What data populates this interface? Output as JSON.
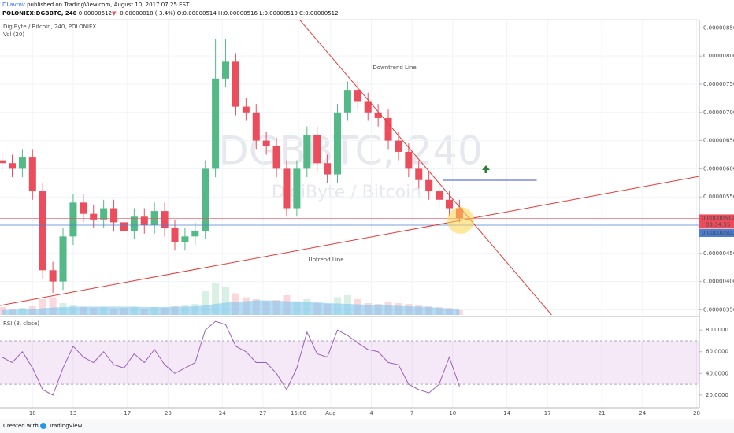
{
  "header": {
    "author": "DLavrov",
    "published": "published on TradingView.com, August 10, 2017 07:25 EST",
    "symbol": "POLONIEX:DGBBTC, 240",
    "last": "0.00000512",
    "arrow": "▼",
    "change": "-0.00000018 (-3.4%)",
    "ohlc": "O:0.00000514 H:0.00000516 L:0.00000510 C:0.00000512"
  },
  "footer": {
    "created": "Created with",
    "brand": "TradingView"
  },
  "chart_data": {
    "type": "candlestick",
    "title": "DigiByte / Bitcoin, 240, POLONIEX",
    "watermark": "DGBBTC, 240",
    "watermark_sub": "DigiByte / Bitcoin",
    "up_color": "#53b987",
    "down_color": "#eb4d5c",
    "x": [
      7.75,
      8.5,
      9.25,
      10,
      10.75,
      11.5,
      12.25,
      13,
      13.75,
      14.5,
      15.25,
      16,
      16.75,
      17.5,
      18.25,
      19,
      19.75,
      20.5,
      21.25,
      22,
      22.75,
      23.5,
      24.25,
      25,
      25.75,
      26.5,
      27.25,
      28,
      28.75,
      29.5,
      30.25,
      31,
      31.75,
      32.5,
      33.25,
      34,
      34.75,
      35.5,
      36.25,
      37,
      37.75,
      38.5,
      39.25,
      40,
      40.75,
      41.5
    ],
    "open": [
      6.15e-06,
      6.1e-06,
      6e-06,
      6.2e-06,
      5.6e-06,
      4.2e-06,
      4e-06,
      4.8e-06,
      5.4e-06,
      5.2e-06,
      5.1e-06,
      5.3e-06,
      5.05e-06,
      4.9e-06,
      5.15e-06,
      5e-06,
      5.25e-06,
      4.95e-06,
      4.7e-06,
      4.8e-06,
      4.9e-06,
      6e-06,
      7.6e-06,
      7.9e-06,
      7.1e-06,
      7e-06,
      6.5e-06,
      6.4e-06,
      6e-06,
      5.3e-06,
      6e-06,
      6.6e-06,
      6.1e-06,
      5.9e-06,
      7e-06,
      7.4e-06,
      7.2e-06,
      7e-06,
      6.9e-06,
      6.5e-06,
      6.3e-06,
      6e-06,
      5.8e-06,
      5.6e-06,
      5.45e-06,
      5.3e-06
    ],
    "high": [
      6.3e-06,
      6.25e-06,
      6.35e-06,
      6.35e-06,
      5.75e-06,
      4.35e-06,
      4.95e-06,
      5.55e-06,
      5.55e-06,
      5.35e-06,
      5.45e-06,
      5.45e-06,
      5.2e-06,
      5.3e-06,
      5.3e-06,
      5.4e-06,
      5.4e-06,
      5.1e-06,
      4.95e-06,
      5.05e-06,
      6.15e-06,
      8.3e-06,
      8.3e-06,
      8.05e-06,
      7.25e-06,
      7.15e-06,
      6.65e-06,
      6.55e-06,
      6.15e-06,
      6.15e-06,
      6.75e-06,
      6.75e-06,
      6.25e-06,
      7.15e-06,
      7.55e-06,
      7.55e-06,
      7.35e-06,
      7.15e-06,
      7.05e-06,
      6.65e-06,
      6.45e-06,
      6.15e-06,
      5.95e-06,
      5.75e-06,
      5.6e-06,
      5.45e-06
    ],
    "low": [
      5.95e-06,
      5.85e-06,
      5.85e-06,
      5.45e-06,
      4.05e-06,
      3.8e-06,
      3.85e-06,
      4.65e-06,
      5.05e-06,
      4.95e-06,
      4.95e-06,
      4.9e-06,
      4.75e-06,
      4.75e-06,
      4.85e-06,
      4.85e-06,
      4.8e-06,
      4.55e-06,
      4.55e-06,
      4.65e-06,
      4.75e-06,
      5.85e-06,
      7.45e-06,
      6.95e-06,
      6.85e-06,
      6.35e-06,
      6.25e-06,
      5.85e-06,
      5.15e-06,
      5.15e-06,
      5.85e-06,
      5.95e-06,
      5.75e-06,
      5.75e-06,
      6.85e-06,
      7.05e-06,
      6.85e-06,
      6.75e-06,
      6.35e-06,
      6.15e-06,
      5.85e-06,
      5.65e-06,
      5.45e-06,
      5.3e-06,
      5.15e-06,
      5.05e-06
    ],
    "close": [
      6.1e-06,
      6e-06,
      6.2e-06,
      5.6e-06,
      4.2e-06,
      4e-06,
      4.8e-06,
      5.4e-06,
      5.2e-06,
      5.1e-06,
      5.3e-06,
      5.05e-06,
      4.9e-06,
      5.15e-06,
      5e-06,
      5.25e-06,
      4.95e-06,
      4.7e-06,
      4.8e-06,
      4.9e-06,
      6e-06,
      7.6e-06,
      7.9e-06,
      7.1e-06,
      7e-06,
      6.5e-06,
      6.4e-06,
      6e-06,
      5.3e-06,
      6e-06,
      6.6e-06,
      6.1e-06,
      5.9e-06,
      7e-06,
      7.4e-06,
      7.2e-06,
      7e-06,
      6.9e-06,
      6.5e-06,
      6.3e-06,
      6e-06,
      5.8e-06,
      5.6e-06,
      5.45e-06,
      5.3e-06,
      5.12e-06
    ],
    "volume_label": "Vol (20)",
    "volume": [
      20,
      15,
      18,
      22,
      40,
      45,
      30,
      25,
      20,
      18,
      20,
      15,
      18,
      20,
      16,
      20,
      18,
      22,
      25,
      28,
      60,
      80,
      70,
      55,
      45,
      40,
      35,
      38,
      50,
      35,
      40,
      30,
      28,
      45,
      50,
      40,
      30,
      28,
      32,
      30,
      28,
      25,
      22,
      20,
      18,
      12
    ],
    "volume_ma": [
      12,
      13,
      14,
      15,
      17,
      19,
      20,
      21,
      21,
      21,
      21,
      21,
      21,
      21,
      20,
      20,
      20,
      21,
      21,
      22,
      24,
      28,
      31,
      33,
      35,
      37,
      37,
      36,
      35,
      34,
      33,
      32,
      30,
      29,
      28,
      27,
      26,
      25,
      24,
      23,
      22,
      21,
      20,
      18,
      16,
      14
    ],
    "volume_ma_color": "#7fc6f0",
    "xlim": [
      7.6,
      59.2
    ],
    "xticks": [
      10,
      13,
      17,
      20,
      24,
      27,
      {
        "value": 29.625,
        "label": "15:00"
      },
      {
        "value": 32,
        "label": "Aug"
      },
      {
        "value": 35,
        "label": "4"
      },
      {
        "value": 38,
        "label": "7"
      },
      {
        "value": 41,
        "label": "10"
      },
      {
        "value": 45,
        "label": "14"
      },
      {
        "value": 48,
        "label": "17"
      },
      {
        "value": 52,
        "label": "21"
      },
      {
        "value": 55,
        "label": "24"
      },
      {
        "value": 59,
        "label": "28"
      }
    ],
    "ylim": [
      3.408e-06,
      8.645e-06
    ],
    "yticks": [
      {
        "value": 8.5e-06,
        "label": "0.00000850"
      },
      {
        "value": 8e-06,
        "label": "0.00000800"
      },
      {
        "value": 7.5e-06,
        "label": "0.00000750"
      },
      {
        "value": 7e-06,
        "label": "0.00000700"
      },
      {
        "value": 6.5e-06,
        "label": "0.00000650"
      },
      {
        "value": 6e-06,
        "label": "0.00000600"
      },
      {
        "value": 5.5e-06,
        "label": "0.00000550"
      },
      {
        "value": 4.5e-06,
        "label": "0.00000450"
      },
      {
        "value": 4e-06,
        "label": "0.00000400"
      },
      {
        "value": 3.5e-06,
        "label": "0.00000350"
      }
    ],
    "grid": true,
    "lines": [
      {
        "label": "Downtrend Line",
        "x": [
          29.7,
          48.3
        ],
        "y": [
          8.645e-06,
          3.408e-06
        ],
        "color": "#e53935"
      },
      {
        "label": "Uptrend Line",
        "x": [
          7.6,
          59.2
        ],
        "y": [
          3.575e-06,
          5.866e-06
        ],
        "color": "#e53935"
      }
    ],
    "last_price": {
      "value": 5.12e-06,
      "label": "0.00000512",
      "countdown": "03:34:55",
      "color": "#eb4d5c"
    },
    "level": {
      "value": 5e-06,
      "label": "0.00000500",
      "color": "#4a7fd4"
    },
    "target": {
      "x": [
        40.3,
        47.2
      ],
      "y": 5.796e-06,
      "color": "#3f51b5"
    },
    "rsi": {
      "label": "RSI (8, close)",
      "color": "#9c5fb8",
      "values": [
        55,
        50,
        60,
        45,
        25,
        20,
        45,
        65,
        55,
        50,
        60,
        48,
        45,
        58,
        50,
        62,
        48,
        40,
        45,
        50,
        80,
        88,
        85,
        65,
        60,
        50,
        50,
        40,
        25,
        45,
        78,
        58,
        55,
        80,
        75,
        68,
        62,
        60,
        50,
        48,
        30,
        25,
        22,
        30,
        55,
        28
      ],
      "ylim": [
        8.3,
        91
      ],
      "band": [
        30,
        70
      ],
      "yticks": [
        {
          "value": 80,
          "label": "80.0000"
        },
        {
          "value": 60,
          "label": "60.0000"
        },
        {
          "value": 40,
          "label": "40.0000"
        },
        {
          "value": 20,
          "label": "20.0000"
        }
      ]
    }
  }
}
